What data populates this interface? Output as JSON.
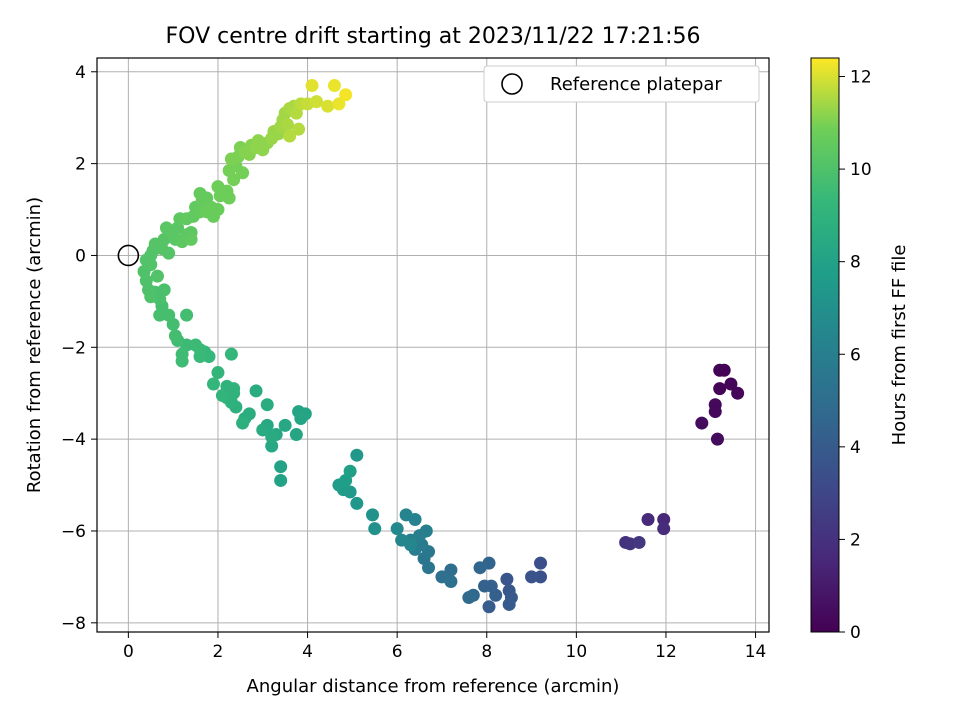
{
  "chart_data": {
    "type": "scatter",
    "title": "FOV centre drift starting at 2023/11/22 17:21:56",
    "xlabel": "Angular distance from reference (arcmin)",
    "ylabel": "Rotation from reference (arcmin)",
    "xlim": [
      -0.7,
      14.3
    ],
    "ylim": [
      -8.2,
      4.3
    ],
    "xticks": [
      0,
      2,
      4,
      6,
      8,
      10,
      12,
      14
    ],
    "yticks": [
      -8,
      -6,
      -4,
      -2,
      0,
      2,
      4
    ],
    "grid": true,
    "legend": {
      "position": "top-right",
      "entries": [
        "Reference platepar"
      ]
    },
    "reference_point": {
      "name": "Reference platepar",
      "x": 0,
      "y": 0
    },
    "colorbar": {
      "label": "Hours from first FF file",
      "colormap": "viridis",
      "range": [
        0,
        12.4
      ],
      "ticks": [
        0,
        2,
        4,
        6,
        8,
        10,
        12
      ]
    },
    "series": [
      {
        "values": [
          [
            13.2,
            -2.5,
            0.1
          ],
          [
            13.3,
            -2.5,
            0.1
          ],
          [
            13.2,
            -2.9,
            0.15
          ],
          [
            13.45,
            -2.8,
            0.2
          ],
          [
            13.6,
            -3.0,
            0.2
          ],
          [
            13.1,
            -3.25,
            0.3
          ],
          [
            13.1,
            -3.4,
            0.3
          ],
          [
            12.8,
            -3.65,
            0.4
          ],
          [
            13.15,
            -4.0,
            0.45
          ],
          [
            11.95,
            -5.75,
            1.6
          ],
          [
            11.6,
            -5.75,
            1.7
          ],
          [
            11.95,
            -5.95,
            1.8
          ],
          [
            11.1,
            -6.25,
            2.0
          ],
          [
            11.2,
            -6.28,
            2.1
          ],
          [
            11.4,
            -6.25,
            2.2
          ],
          [
            9.2,
            -6.7,
            3.4
          ],
          [
            9.2,
            -7.0,
            3.5
          ],
          [
            9.0,
            -7.0,
            3.6
          ],
          [
            8.45,
            -7.05,
            3.7
          ],
          [
            8.5,
            -7.3,
            3.8
          ],
          [
            8.55,
            -7.45,
            3.9
          ],
          [
            8.5,
            -7.6,
            4.0
          ],
          [
            8.05,
            -7.65,
            4.1
          ],
          [
            8.2,
            -7.4,
            4.2
          ],
          [
            8.1,
            -7.2,
            4.3
          ],
          [
            7.95,
            -7.2,
            4.4
          ],
          [
            8.05,
            -6.7,
            4.5
          ],
          [
            7.85,
            -6.8,
            4.6
          ],
          [
            7.7,
            -7.4,
            4.7
          ],
          [
            7.6,
            -7.45,
            4.8
          ],
          [
            7.2,
            -6.85,
            5.0
          ],
          [
            7.0,
            -7.0,
            5.1
          ],
          [
            7.2,
            -7.1,
            5.2
          ],
          [
            6.7,
            -6.8,
            5.4
          ],
          [
            6.6,
            -6.6,
            5.5
          ],
          [
            6.7,
            -6.45,
            5.6
          ],
          [
            6.55,
            -6.3,
            5.7
          ],
          [
            6.4,
            -6.4,
            5.8
          ],
          [
            6.5,
            -6.1,
            5.9
          ],
          [
            6.65,
            -6.0,
            6.0
          ],
          [
            6.3,
            -6.2,
            6.1
          ],
          [
            6.4,
            -5.75,
            6.2
          ],
          [
            6.2,
            -5.65,
            6.3
          ],
          [
            6.3,
            -6.3,
            6.4
          ],
          [
            6.1,
            -6.2,
            6.5
          ],
          [
            6.0,
            -5.95,
            6.6
          ],
          [
            5.5,
            -5.95,
            7.0
          ],
          [
            5.45,
            -5.65,
            7.1
          ],
          [
            5.1,
            -5.4,
            7.3
          ],
          [
            5.1,
            -4.35,
            7.4
          ],
          [
            4.95,
            -5.15,
            7.5
          ],
          [
            4.8,
            -5.1,
            7.6
          ],
          [
            4.7,
            -5.0,
            7.7
          ],
          [
            4.85,
            -4.9,
            7.8
          ],
          [
            4.95,
            -4.7,
            7.9
          ],
          [
            3.4,
            -4.6,
            8.0
          ],
          [
            3.4,
            -4.9,
            8.0
          ],
          [
            3.8,
            -3.4,
            8.1
          ],
          [
            3.95,
            -3.45,
            8.1
          ],
          [
            3.85,
            -3.55,
            8.2
          ],
          [
            3.75,
            -3.9,
            8.2
          ],
          [
            3.5,
            -3.7,
            8.3
          ],
          [
            3.2,
            -4.15,
            8.3
          ],
          [
            3.3,
            -3.9,
            8.4
          ],
          [
            3.1,
            -3.7,
            8.4
          ],
          [
            3.0,
            -3.8,
            8.5
          ],
          [
            3.2,
            -3.95,
            8.5
          ],
          [
            2.85,
            -2.95,
            8.6
          ],
          [
            3.1,
            -3.25,
            8.6
          ],
          [
            2.7,
            -3.45,
            8.7
          ],
          [
            2.6,
            -3.55,
            8.7
          ],
          [
            2.55,
            -3.65,
            8.8
          ],
          [
            2.4,
            -3.3,
            8.8
          ],
          [
            2.3,
            -3.2,
            8.9
          ],
          [
            2.2,
            -3.1,
            8.9
          ],
          [
            2.35,
            -3.0,
            9.0
          ],
          [
            2.2,
            -2.85,
            9.0
          ],
          [
            2.35,
            -2.9,
            9.0
          ],
          [
            2.1,
            -3.05,
            9.1
          ],
          [
            2.0,
            -2.55,
            9.1
          ],
          [
            2.3,
            -2.15,
            9.2
          ],
          [
            1.9,
            -2.8,
            9.2
          ],
          [
            1.8,
            -2.2,
            9.3
          ],
          [
            1.7,
            -2.1,
            9.3
          ],
          [
            1.6,
            -2.2,
            9.4
          ],
          [
            1.6,
            -2.05,
            9.4
          ],
          [
            1.5,
            -1.95,
            9.5
          ],
          [
            1.3,
            -1.95,
            9.5
          ],
          [
            1.2,
            -2.15,
            9.6
          ],
          [
            1.2,
            -2.3,
            9.6
          ],
          [
            1.1,
            -1.85,
            9.6
          ],
          [
            1.05,
            -1.75,
            9.7
          ],
          [
            1.3,
            -1.3,
            9.7
          ],
          [
            1.0,
            -1.5,
            9.7
          ],
          [
            0.9,
            -1.3,
            9.8
          ],
          [
            0.7,
            -1.3,
            9.8
          ],
          [
            0.75,
            -1.1,
            9.8
          ],
          [
            0.8,
            -0.75,
            9.9
          ],
          [
            0.7,
            -0.95,
            9.9
          ],
          [
            0.6,
            -0.8,
            9.9
          ],
          [
            0.5,
            -0.9,
            10.0
          ],
          [
            0.45,
            -0.75,
            10.0
          ],
          [
            0.4,
            -0.55,
            10.0
          ],
          [
            0.35,
            -0.35,
            10.0
          ],
          [
            0.4,
            -0.1,
            10.1
          ],
          [
            0.5,
            0.0,
            10.1
          ],
          [
            0.55,
            0.1,
            10.1
          ],
          [
            0.5,
            -0.2,
            10.1
          ],
          [
            0.65,
            -0.45,
            10.1
          ],
          [
            0.6,
            0.25,
            10.2
          ],
          [
            0.75,
            0.15,
            10.2
          ],
          [
            0.9,
            0.05,
            10.2
          ],
          [
            0.8,
            0.35,
            10.2
          ],
          [
            0.85,
            0.6,
            10.3
          ],
          [
            1.0,
            0.45,
            10.3
          ],
          [
            1.05,
            0.35,
            10.3
          ],
          [
            1.1,
            0.6,
            10.3
          ],
          [
            1.2,
            0.3,
            10.4
          ],
          [
            1.3,
            0.45,
            10.4
          ],
          [
            1.4,
            0.5,
            10.4
          ],
          [
            1.15,
            0.8,
            10.4
          ],
          [
            1.3,
            0.8,
            10.5
          ],
          [
            1.4,
            0.35,
            10.5
          ],
          [
            1.45,
            0.85,
            10.5
          ],
          [
            1.5,
            1.05,
            10.5
          ],
          [
            1.6,
            0.95,
            10.6
          ],
          [
            1.65,
            1.2,
            10.6
          ],
          [
            1.6,
            1.35,
            10.6
          ],
          [
            1.75,
            1.25,
            10.6
          ],
          [
            1.85,
            1.05,
            10.7
          ],
          [
            1.9,
            0.85,
            10.7
          ],
          [
            1.75,
            0.95,
            10.7
          ],
          [
            2.0,
            1.0,
            10.7
          ],
          [
            2.05,
            1.3,
            10.8
          ],
          [
            2.0,
            1.5,
            10.8
          ],
          [
            2.2,
            1.4,
            10.8
          ],
          [
            2.25,
            1.25,
            10.8
          ],
          [
            2.35,
            1.65,
            10.9
          ],
          [
            2.25,
            1.85,
            10.9
          ],
          [
            2.4,
            1.95,
            10.9
          ],
          [
            2.55,
            1.8,
            10.9
          ],
          [
            2.3,
            2.1,
            11.0
          ],
          [
            2.45,
            2.15,
            11.0
          ],
          [
            2.5,
            2.35,
            11.0
          ],
          [
            2.6,
            2.25,
            11.1
          ],
          [
            2.7,
            2.2,
            11.1
          ],
          [
            2.75,
            2.4,
            11.1
          ],
          [
            2.85,
            2.35,
            11.2
          ],
          [
            2.9,
            2.5,
            11.2
          ],
          [
            3.0,
            2.3,
            11.2
          ],
          [
            3.1,
            2.45,
            11.2
          ],
          [
            3.2,
            2.55,
            11.3
          ],
          [
            3.25,
            2.7,
            11.3
          ],
          [
            3.35,
            2.65,
            11.3
          ],
          [
            3.4,
            2.8,
            11.4
          ],
          [
            3.45,
            2.95,
            11.4
          ],
          [
            3.5,
            3.1,
            11.4
          ],
          [
            3.55,
            2.85,
            11.5
          ],
          [
            3.6,
            3.2,
            11.5
          ],
          [
            3.7,
            3.25,
            11.5
          ],
          [
            3.75,
            3.1,
            11.6
          ],
          [
            3.8,
            2.75,
            11.6
          ],
          [
            3.6,
            2.6,
            11.6
          ],
          [
            3.85,
            3.3,
            11.7
          ],
          [
            4.0,
            3.3,
            11.8
          ],
          [
            4.2,
            3.35,
            11.9
          ],
          [
            4.45,
            3.25,
            12.0
          ],
          [
            4.1,
            3.7,
            12.1
          ],
          [
            4.6,
            3.7,
            12.2
          ],
          [
            4.7,
            3.3,
            12.2
          ],
          [
            4.85,
            3.5,
            12.3
          ]
        ]
      }
    ]
  }
}
